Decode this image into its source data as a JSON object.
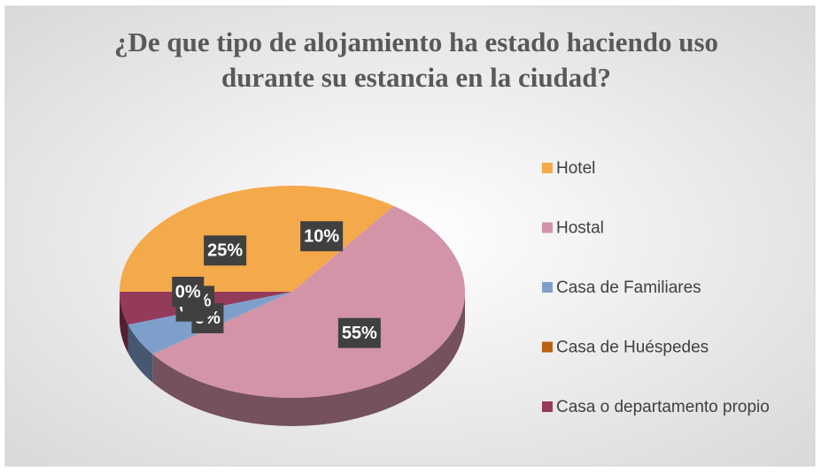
{
  "chart_data": {
    "type": "pie3d",
    "title": "¿De que tipo de alojamiento ha estado haciendo uso durante su estancia en la ciudad?",
    "categories": [
      "Hotel",
      "Hostal",
      "Casa de Familiares",
      "Casa de Huéspedes",
      "Casa o departamento propio",
      null,
      null
    ],
    "values": [
      10,
      55,
      5,
      0,
      5,
      0,
      25
    ],
    "value_labels": [
      "10%",
      "55%",
      "5%",
      "0%",
      "5%",
      "0%",
      "25%"
    ],
    "colors": [
      "#f4a94a",
      "#d394a8",
      "#7f9fcb",
      "#b8620f",
      "#943a5a",
      "#c2c2c2",
      "#f4a94a"
    ],
    "legend": "right"
  }
}
